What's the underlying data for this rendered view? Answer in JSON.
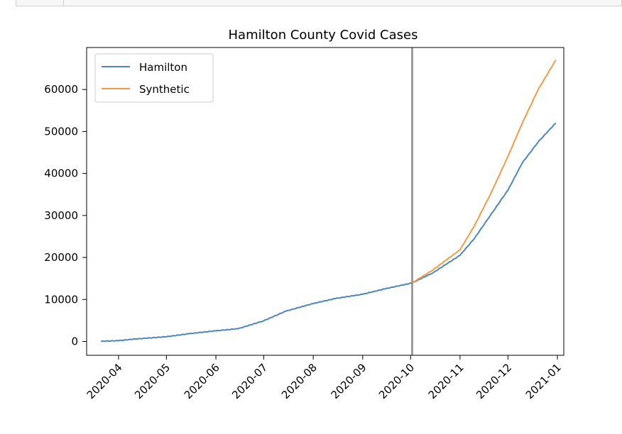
{
  "chart_data": {
    "type": "line",
    "title": "Hamilton County Covid Cases",
    "xlabel": "",
    "ylabel": "",
    "x_ticks": [
      "2020-04",
      "2020-05",
      "2020-06",
      "2020-07",
      "2020-08",
      "2020-09",
      "2020-10",
      "2020-11",
      "2020-12",
      "2021-01"
    ],
    "y_ticks": [
      0,
      10000,
      20000,
      30000,
      40000,
      50000,
      60000
    ],
    "ylim": [
      -3300,
      70000
    ],
    "xlim": [
      "2020-03-12",
      "2021-01-05"
    ],
    "legend_position": "top-left",
    "grid": false,
    "intervention_date": "2020-10-02",
    "series": [
      {
        "name": "Hamilton",
        "color": "#4c86c2",
        "points": [
          [
            "2020-03-21",
            0
          ],
          [
            "2020-04-01",
            150
          ],
          [
            "2020-04-10",
            500
          ],
          [
            "2020-05-01",
            1100
          ],
          [
            "2020-05-15",
            1800
          ],
          [
            "2020-06-01",
            2500
          ],
          [
            "2020-06-15",
            3000
          ],
          [
            "2020-07-01",
            4900
          ],
          [
            "2020-07-15",
            7200
          ],
          [
            "2020-08-01",
            9000
          ],
          [
            "2020-08-15",
            10200
          ],
          [
            "2020-09-01",
            11200
          ],
          [
            "2020-09-15",
            12500
          ],
          [
            "2020-10-02",
            13900
          ],
          [
            "2020-10-15",
            16300
          ],
          [
            "2020-11-01",
            20500
          ],
          [
            "2020-11-10",
            24500
          ],
          [
            "2020-11-20",
            30000
          ],
          [
            "2020-12-01",
            36000
          ],
          [
            "2020-12-10",
            42500
          ],
          [
            "2020-12-20",
            47500
          ],
          [
            "2020-12-31",
            52000
          ]
        ]
      },
      {
        "name": "Synthetic",
        "color": "#f39a43",
        "points": [
          [
            "2020-10-02",
            13900
          ],
          [
            "2020-10-15",
            17000
          ],
          [
            "2020-11-01",
            21800
          ],
          [
            "2020-11-10",
            27500
          ],
          [
            "2020-11-20",
            35000
          ],
          [
            "2020-12-01",
            44000
          ],
          [
            "2020-12-10",
            52000
          ],
          [
            "2020-12-20",
            60000
          ],
          [
            "2020-12-31",
            67000
          ]
        ]
      }
    ]
  }
}
